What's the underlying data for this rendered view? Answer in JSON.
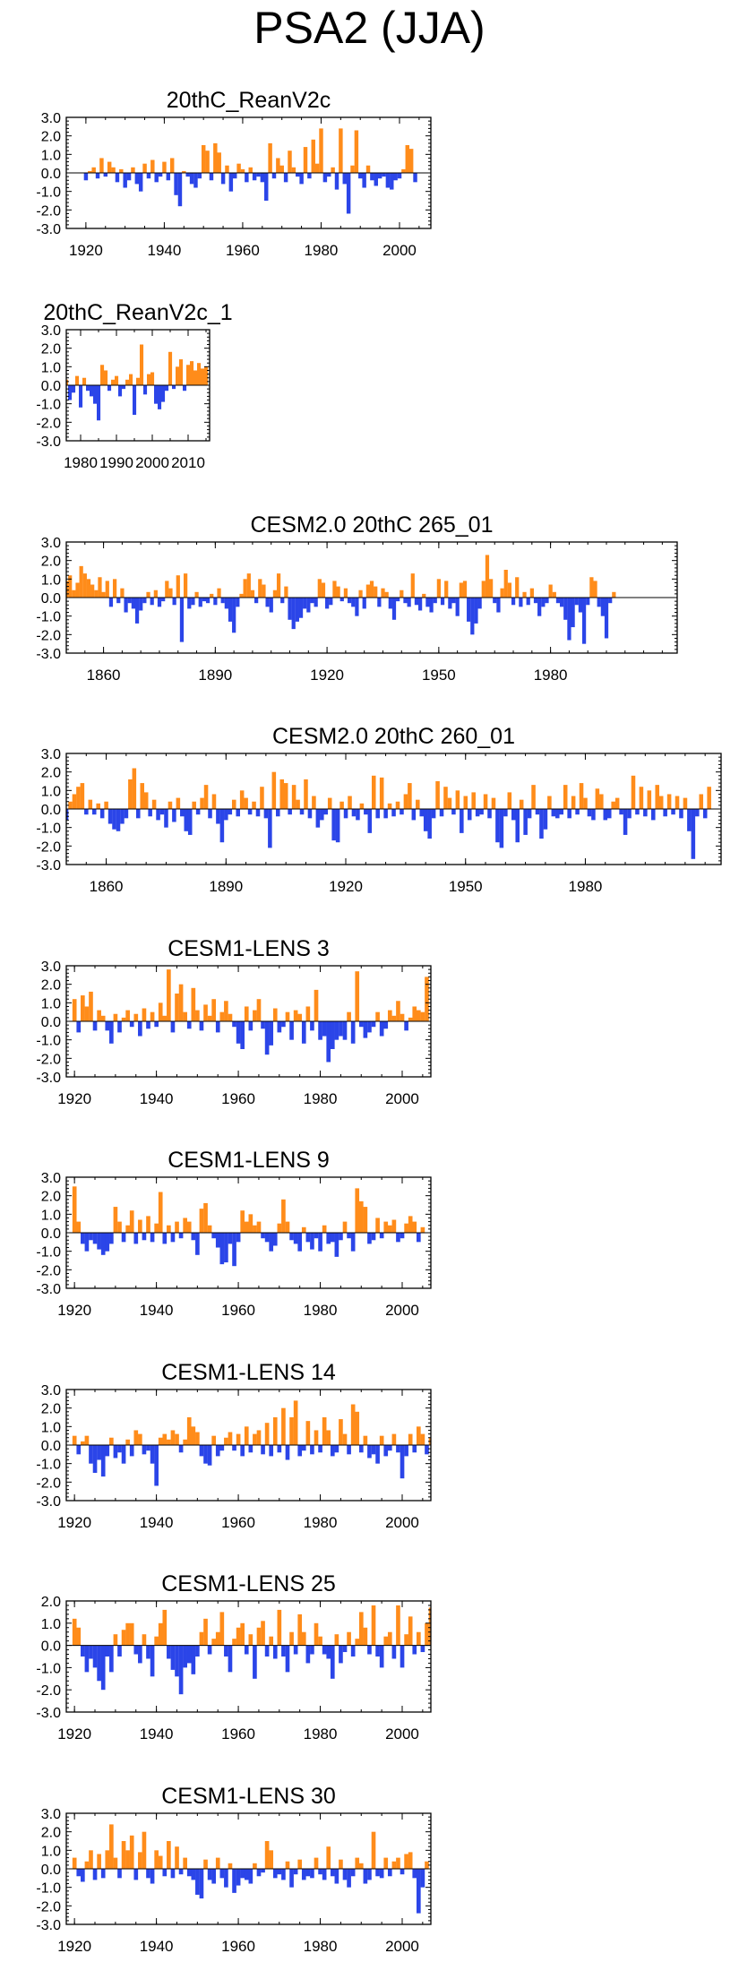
{
  "title": "PSA2 (JJA)",
  "colors": {
    "positive": "#ff8c1a",
    "negative": "#2b45e8",
    "frame": "#000000"
  },
  "chart_data": [
    {
      "type": "area",
      "title": "20thC_ReanV2c",
      "xlim": [
        1915,
        2008
      ],
      "ylim": [
        -3,
        3
      ],
      "yticks": [
        "3.0",
        "2.0",
        "1.0",
        "0.0",
        "-1.0",
        "-2.0",
        "-3.0"
      ],
      "xticks": [
        1920,
        1940,
        1960,
        1980,
        2000
      ],
      "xtick_labels": [
        "1920",
        "1940",
        "1960",
        "1980",
        "2000"
      ],
      "x_start": 1920,
      "values": [
        -0.4,
        0.1,
        0.3,
        -0.3,
        0.8,
        -0.2,
        0.6,
        0.3,
        -0.5,
        0.2,
        -0.8,
        -0.4,
        0.3,
        -0.6,
        -1.0,
        0.5,
        -0.3,
        0.7,
        -0.5,
        -0.2,
        0.6,
        -0.4,
        0.8,
        -1.2,
        -1.8,
        0.1,
        -0.2,
        -0.6,
        -0.8,
        -0.3,
        1.5,
        1.2,
        -0.4,
        1.6,
        1.1,
        -0.6,
        0.4,
        -1.0,
        -0.3,
        0.5,
        0.2,
        -0.5,
        0.3,
        -0.4,
        -0.2,
        -0.5,
        -1.5,
        1.6,
        -0.3,
        0.8,
        0.4,
        -0.5,
        1.2,
        0.3,
        -0.2,
        -0.6,
        1.4,
        -0.3,
        1.8,
        0.5,
        2.4,
        -0.5,
        -0.2,
        0.3,
        -0.9,
        2.4,
        -0.6,
        -2.2,
        0.4,
        2.3,
        -0.3,
        -0.8,
        0.4,
        -0.4,
        -0.7,
        -0.3,
        -0.2,
        -0.8,
        -0.9,
        -0.4,
        -0.3,
        0.2,
        1.5,
        1.3,
        -0.5
      ]
    },
    {
      "type": "area",
      "title": "20thC_ReanV2c_1",
      "xlim": [
        1976,
        2016
      ],
      "ylim": [
        -3,
        3
      ],
      "yticks": [
        "3.0",
        "2.0",
        "1.0",
        "0.0",
        "-1.0",
        "-2.0",
        "-3.0"
      ],
      "xticks": [
        1980,
        1990,
        2000,
        2010
      ],
      "xtick_labels": [
        "1980",
        "1990",
        "2000",
        "2010"
      ],
      "x_start": 1976,
      "values": [
        0.3,
        -0.8,
        -0.4,
        0.5,
        -1.2,
        0.4,
        -0.3,
        -0.6,
        -1.0,
        -1.9,
        1.1,
        0.8,
        -0.3,
        0.3,
        0.5,
        -0.6,
        -0.2,
        0.3,
        0.6,
        -1.6,
        0.4,
        2.2,
        -0.5,
        0.6,
        0.7,
        -1.0,
        -1.3,
        -0.9,
        -0.3,
        1.8,
        -0.2,
        1.0,
        1.4,
        -0.3,
        1.1,
        1.3,
        0.8,
        1.2,
        0.9,
        1.0
      ]
    },
    {
      "type": "area",
      "title": "CESM2.0 20thC 265_01",
      "xlim": [
        1850,
        2014
      ],
      "ylim": [
        -3,
        3
      ],
      "yticks": [
        "3.0",
        "2.0",
        "1.0",
        "0.0",
        "-1.0",
        "-2.0",
        "-3.0"
      ],
      "xticks": [
        1860,
        1890,
        1920,
        1950,
        1980
      ],
      "xtick_labels": [
        "1860",
        "1890",
        "1920",
        "1950",
        "1980"
      ],
      "x_start": 1850,
      "values": [
        0.9,
        1.2,
        0.4,
        0.8,
        1.7,
        1.3,
        1.0,
        0.7,
        0.4,
        1.1,
        0.3,
        0.9,
        -0.5,
        1.0,
        -0.3,
        0.5,
        -0.8,
        -0.3,
        -0.6,
        -1.4,
        -0.7,
        -0.3,
        0.3,
        -0.4,
        0.4,
        -0.5,
        -0.2,
        0.9,
        0.5,
        -0.4,
        1.2,
        -2.4,
        1.3,
        -0.6,
        -0.4,
        0.3,
        -0.5,
        -0.2,
        -0.3,
        0.2,
        -0.4,
        0.5,
        -0.3,
        -0.6,
        -1.3,
        -1.9,
        -0.5,
        0.2,
        1.0,
        1.3,
        0.4,
        -0.3,
        1.0,
        0.7,
        -0.5,
        -0.8,
        0.4,
        1.3,
        -0.3,
        0.6,
        -1.2,
        -1.7,
        -1.3,
        -1.1,
        -0.6,
        -0.8,
        -0.3,
        -0.5,
        1.0,
        0.8,
        -0.6,
        -0.4,
        0.9,
        0.6,
        -0.2,
        0.5,
        -0.3,
        -0.5,
        -1.0,
        0.4,
        -0.6,
        0.7,
        0.9,
        0.6,
        -0.5,
        0.5,
        0.3,
        -0.6,
        -1.2,
        -0.2,
        0.4,
        -0.3,
        -0.5,
        1.3,
        -0.4,
        -0.7,
        0.2,
        -0.5,
        -0.8,
        -0.3,
        1.0,
        -0.4,
        0.9,
        -0.6,
        -0.3,
        -1.0,
        0.8,
        0.9,
        -1.3,
        -2.0,
        -1.4,
        -0.6,
        0.9,
        2.3,
        1.0,
        -0.3,
        -0.8,
        0.5,
        1.5,
        0.8,
        -0.4,
        1.1,
        -0.5,
        0.3,
        -0.4,
        0.5,
        -0.3,
        -1.0,
        -0.5,
        -0.3,
        0.7,
        0.3,
        -0.3,
        -0.5,
        -1.2,
        -2.3,
        -1.6,
        -0.4,
        -0.8,
        -2.5,
        -0.4,
        1.1,
        0.9,
        -0.5,
        -1.0,
        -2.2,
        -0.3,
        0.3
      ]
    },
    {
      "type": "area",
      "title": "CESM2.0 20thC 260_01",
      "xlim": [
        1850,
        2014
      ],
      "ylim": [
        -3,
        3
      ],
      "yticks": [
        "3.0",
        "2.0",
        "1.0",
        "0.0",
        "-1.0",
        "-2.0",
        "-3.0"
      ],
      "xticks": [
        1860,
        1890,
        1920,
        1950,
        1980
      ],
      "xtick_labels": [
        "1860",
        "1890",
        "1920",
        "1950",
        "1980"
      ],
      "x_start": 1850,
      "values": [
        -0.6,
        0.4,
        0.8,
        1.2,
        1.4,
        -0.3,
        0.5,
        -0.3,
        0.3,
        -0.5,
        0.4,
        -0.8,
        -1.1,
        -1.2,
        -0.8,
        -0.5,
        1.6,
        2.2,
        -0.5,
        1.4,
        0.9,
        -0.4,
        0.5,
        -0.6,
        -0.3,
        -1.0,
        0.4,
        -0.7,
        0.6,
        -0.4,
        -1.2,
        -1.4,
        0.4,
        -0.3,
        0.6,
        1.3,
        -0.5,
        0.8,
        -0.8,
        -1.8,
        -0.6,
        -0.3,
        0.5,
        -0.4,
        1.0,
        0.6,
        -0.3,
        0.4,
        -0.4,
        1.2,
        -0.5,
        -2.1,
        2.0,
        -0.4,
        1.6,
        1.4,
        -0.3,
        1.3,
        0.5,
        -0.3,
        1.6,
        -0.5,
        0.7,
        -1.0,
        -0.6,
        -0.3,
        0.6,
        -1.7,
        -1.8,
        0.4,
        -0.5,
        0.7,
        -0.4,
        -0.6,
        0.3,
        -0.3,
        -1.3,
        1.8,
        -0.5,
        1.7,
        -0.5,
        0.3,
        -0.4,
        0.4,
        -0.3,
        0.8,
        1.4,
        -0.6,
        0.5,
        -0.4,
        -1.2,
        -1.6,
        -0.5,
        1.5,
        -0.4,
        1.2,
        0.6,
        -0.3,
        1.0,
        -1.3,
        0.7,
        -0.6,
        0.9,
        -0.4,
        -0.3,
        0.8,
        -0.5,
        0.6,
        -1.8,
        -2.1,
        -0.4,
        0.9,
        -0.6,
        -1.8,
        0.5,
        -1.4,
        -0.5,
        1.3,
        -0.3,
        -1.6,
        -1.1,
        0.7,
        -0.4,
        -0.5,
        -0.3,
        1.3,
        -0.5,
        0.7,
        -0.3,
        1.4,
        0.6,
        -0.4,
        -0.6,
        1.1,
        0.8,
        -0.6,
        -0.5,
        0.4,
        0.6,
        -0.3,
        -1.4,
        -0.5,
        1.8,
        -0.3,
        1.2,
        -0.4,
        1.0,
        -0.6,
        1.3,
        0.7,
        -0.4,
        0.8,
        -0.3,
        0.7,
        -0.5,
        0.6,
        -1.2,
        -2.7,
        -0.4,
        0.8,
        -0.5,
        1.2
      ]
    },
    {
      "type": "area",
      "title": "CESM1-LENS 3",
      "xlim": [
        1918,
        2007
      ],
      "ylim": [
        -3,
        3
      ],
      "yticks": [
        "3.0",
        "2.0",
        "1.0",
        "0.0",
        "-1.0",
        "-2.0",
        "-3.0"
      ],
      "xticks": [
        1920,
        1940,
        1960,
        1980,
        2000
      ],
      "xtick_labels": [
        "1920",
        "1940",
        "1960",
        "1980",
        "2000"
      ],
      "x_start": 1920,
      "values": [
        1.2,
        -0.6,
        1.4,
        0.8,
        1.6,
        -0.5,
        0.6,
        0.3,
        -0.5,
        -1.2,
        0.4,
        -0.6,
        0.2,
        0.6,
        -0.3,
        0.4,
        -0.8,
        0.7,
        -0.4,
        0.5,
        -0.3,
        1.0,
        0.3,
        2.8,
        -0.6,
        1.5,
        2.0,
        0.5,
        -0.4,
        1.8,
        0.6,
        -0.5,
        0.9,
        0.3,
        1.2,
        -0.6,
        0.5,
        1.1,
        0.4,
        -0.3,
        -1.2,
        -1.5,
        0.8,
        -0.5,
        0.6,
        1.2,
        -0.4,
        -1.8,
        -1.3,
        0.7,
        -0.6,
        -0.3,
        0.5,
        -1.0,
        0.6,
        0.4,
        -1.2,
        0.8,
        -0.5,
        1.7,
        -1.0,
        -0.8,
        -2.2,
        -1.5,
        -1.0,
        -0.8,
        -1.0,
        0.5,
        -1.2,
        2.7,
        -0.3,
        -0.9,
        -0.6,
        -0.3,
        0.5,
        -0.8,
        -0.4,
        0.6,
        0.3,
        1.1,
        0.4,
        -0.5,
        0.2,
        0.8,
        0.6,
        0.5,
        2.4
      ]
    },
    {
      "type": "area",
      "title": "CESM1-LENS 9",
      "xlim": [
        1918,
        2007
      ],
      "ylim": [
        -3,
        3
      ],
      "yticks": [
        "3.0",
        "2.0",
        "1.0",
        "0.0",
        "-1.0",
        "-2.0",
        "-3.0"
      ],
      "xticks": [
        1920,
        1940,
        1960,
        1980,
        2000
      ],
      "xtick_labels": [
        "1920",
        "1940",
        "1960",
        "1980",
        "2000"
      ],
      "x_start": 1920,
      "values": [
        2.5,
        0.6,
        -0.6,
        -1.0,
        -0.4,
        -0.6,
        -0.9,
        -1.2,
        -1.0,
        -0.6,
        1.4,
        0.6,
        -0.5,
        0.4,
        1.2,
        -0.6,
        0.7,
        -0.4,
        0.9,
        -0.5,
        0.5,
        2.2,
        -0.6,
        0.4,
        -0.5,
        0.6,
        -0.3,
        0.8,
        0.6,
        -0.4,
        -1.2,
        1.3,
        1.6,
        0.4,
        -0.3,
        -0.8,
        -1.7,
        -1.6,
        -0.6,
        -1.8,
        -0.5,
        1.2,
        0.6,
        1.0,
        0.4,
        0.6,
        -0.3,
        -0.5,
        -1.0,
        -0.7,
        0.5,
        1.8,
        0.6,
        -0.4,
        -0.6,
        -1.0,
        0.3,
        -0.5,
        -0.9,
        -0.3,
        -1.0,
        0.4,
        -0.6,
        -0.5,
        -1.3,
        -0.4,
        0.6,
        -0.3,
        -1.0,
        2.4,
        1.7,
        1.4,
        -0.6,
        -0.4,
        0.8,
        -0.3,
        0.6,
        0.4,
        0.7,
        -0.5,
        -0.3,
        0.5,
        0.9,
        0.6,
        -0.5,
        0.3
      ]
    },
    {
      "type": "area",
      "title": "CESM1-LENS 14",
      "xlim": [
        1918,
        2007
      ],
      "ylim": [
        -3,
        3
      ],
      "yticks": [
        "3.0",
        "2.0",
        "1.0",
        "0.0",
        "-1.0",
        "-2.0",
        "-3.0"
      ],
      "xticks": [
        1920,
        1940,
        1960,
        1980,
        2000
      ],
      "xtick_labels": [
        "1920",
        "1940",
        "1960",
        "1980",
        "2000"
      ],
      "x_start": 1920,
      "values": [
        0.5,
        -0.5,
        0.2,
        0.5,
        -1.0,
        -1.5,
        -0.8,
        -1.7,
        -0.6,
        0.4,
        -0.7,
        -0.4,
        -1.0,
        0.3,
        -0.6,
        0.8,
        0.6,
        -0.5,
        -0.3,
        -1.0,
        -2.2,
        0.4,
        0.6,
        0.3,
        0.8,
        0.6,
        -0.4,
        0.3,
        1.5,
        1.0,
        0.7,
        -0.6,
        -1.0,
        -1.1,
        0.5,
        -0.6,
        -0.3,
        0.4,
        0.7,
        -0.3,
        0.6,
        -0.6,
        1.0,
        -0.4,
        0.6,
        0.8,
        -0.5,
        1.2,
        -0.6,
        1.5,
        -0.4,
        2.0,
        -0.8,
        1.5,
        2.4,
        -0.6,
        -0.3,
        1.3,
        -0.5,
        0.8,
        -0.4,
        1.5,
        0.8,
        -0.6,
        -0.4,
        1.4,
        0.6,
        -0.5,
        2.2,
        1.8,
        -0.4,
        0.5,
        -0.7,
        -0.5,
        -1.0,
        0.5,
        -0.6,
        -0.3,
        0.6,
        -0.4,
        -1.8,
        -0.6,
        0.6,
        -0.4,
        1.0,
        0.6,
        -0.5,
        0.4
      ]
    },
    {
      "type": "area",
      "title": "CESM1-LENS 25",
      "xlim": [
        1918,
        2007
      ],
      "ylim": [
        -3,
        2
      ],
      "yticks": [
        "2.0",
        "1.0",
        "0.0",
        "-1.0",
        "-2.0",
        "-3.0"
      ],
      "xticks": [
        1920,
        1940,
        1960,
        1980,
        2000
      ],
      "xtick_labels": [
        "1920",
        "1940",
        "1960",
        "1980",
        "2000"
      ],
      "x_start": 1920,
      "values": [
        1.2,
        0.8,
        -0.5,
        -1.2,
        -0.6,
        -1.0,
        -1.6,
        -2.0,
        -0.5,
        -1.2,
        0.5,
        -0.5,
        0.7,
        1.0,
        1.0,
        -0.4,
        -0.8,
        0.5,
        -0.6,
        -1.4,
        0.4,
        1.0,
        1.6,
        -0.6,
        -1.1,
        -1.4,
        -2.2,
        -1.0,
        -0.8,
        -1.3,
        -0.5,
        0.6,
        1.2,
        -0.4,
        0.3,
        0.6,
        1.5,
        -0.5,
        -1.2,
        0.3,
        0.8,
        1.0,
        -0.4,
        0.5,
        -1.5,
        0.8,
        1.1,
        -0.5,
        0.4,
        -0.6,
        1.6,
        -0.5,
        -1.2,
        0.6,
        -0.4,
        1.4,
        0.6,
        -0.8,
        -0.4,
        1.0,
        0.4,
        -0.4,
        -0.6,
        -1.5,
        0.5,
        -0.8,
        -0.3,
        0.6,
        -0.5,
        0.3,
        1.5,
        0.8,
        -0.4,
        1.8,
        -0.5,
        -1.0,
        0.4,
        0.6,
        -0.6,
        1.8,
        -1.0,
        0.5,
        1.3,
        -0.4,
        0.6,
        -0.3,
        1.0,
        1.7
      ]
    },
    {
      "type": "area",
      "title": "CESM1-LENS 30",
      "xlim": [
        1918,
        2007
      ],
      "ylim": [
        -3,
        3
      ],
      "yticks": [
        "3.0",
        "2.0",
        "1.0",
        "0.0",
        "-1.0",
        "-2.0",
        "-3.0"
      ],
      "xticks": [
        1920,
        1940,
        1960,
        1980,
        2000
      ],
      "xtick_labels": [
        "1920",
        "1940",
        "1960",
        "1980",
        "2000"
      ],
      "x_start": 1920,
      "values": [
        0.6,
        -0.4,
        -0.7,
        0.4,
        1.0,
        -0.6,
        0.8,
        -0.5,
        1.0,
        2.4,
        0.6,
        -0.5,
        1.5,
        1.0,
        1.8,
        -0.6,
        0.9,
        2.0,
        -0.5,
        -0.8,
        1.0,
        0.7,
        -0.4,
        1.5,
        -0.5,
        1.2,
        -0.3,
        0.6,
        -0.4,
        -0.6,
        -1.4,
        -1.6,
        0.5,
        -0.6,
        -0.8,
        0.6,
        -0.5,
        -1.0,
        0.3,
        -1.3,
        -0.9,
        -0.5,
        -0.6,
        -0.8,
        0.3,
        -0.4,
        -0.2,
        1.5,
        1.0,
        -0.5,
        -0.3,
        -0.6,
        0.4,
        -1.0,
        -0.3,
        0.5,
        -0.6,
        -0.4,
        -0.5,
        0.6,
        -0.3,
        -0.6,
        1.2,
        -0.4,
        -0.8,
        0.5,
        -0.6,
        -1.0,
        -0.4,
        0.6,
        0.3,
        -0.8,
        -0.6,
        2.0,
        -0.4,
        -0.5,
        0.6,
        -0.4,
        0.4,
        0.6,
        -0.3,
        0.8,
        0.9,
        -0.5,
        -2.4,
        -1.0,
        0.4
      ]
    }
  ]
}
